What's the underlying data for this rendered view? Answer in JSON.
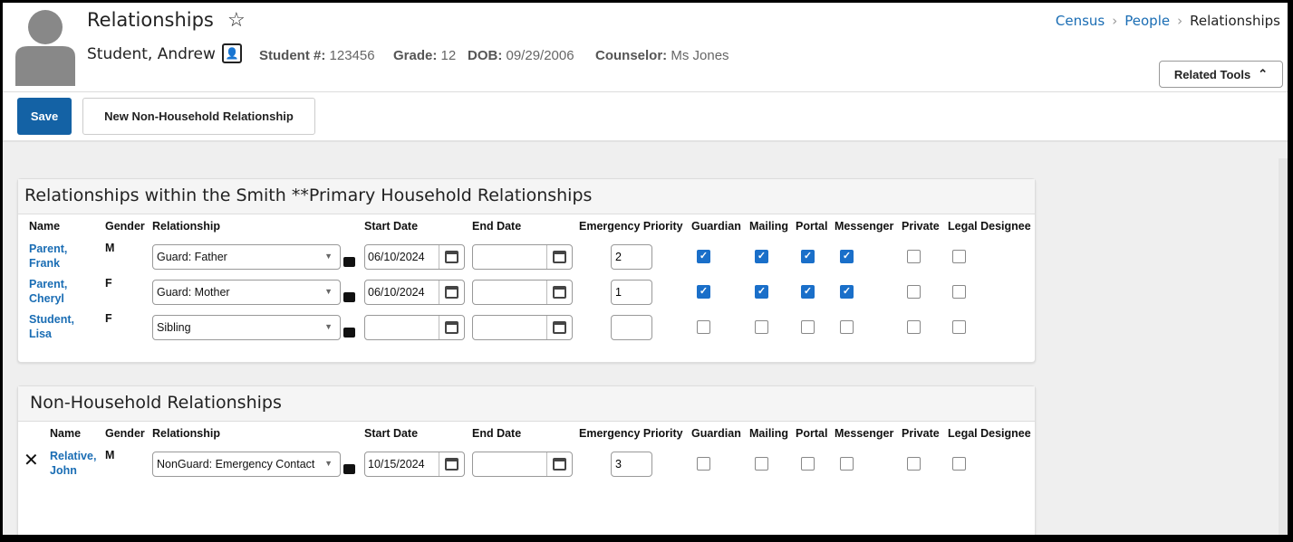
{
  "header": {
    "title": "Relationships",
    "student_name": "Student, Andrew",
    "student_num_label": "Student #:",
    "student_num": "123456",
    "grade_label": "Grade:",
    "grade": "12",
    "dob_label": "DOB:",
    "dob": "09/29/2006",
    "counselor_label": "Counselor:",
    "counselor": "Ms Jones",
    "breadcrumbs": [
      "Census",
      "People",
      "Relationships"
    ],
    "related_tools": "Related Tools"
  },
  "toolbar": {
    "save": "Save",
    "new_non_household": "New Non-Household Relationship"
  },
  "colors": {
    "primary": "#1462a5",
    "link": "#1a6db4",
    "checkbox": "#1a6fc9"
  },
  "columns": [
    "Name",
    "Gender",
    "Relationship",
    "Start Date",
    "End Date",
    "Emergency Priority",
    "Guardian",
    "Mailing",
    "Portal",
    "Messenger",
    "Private",
    "Legal Designee"
  ],
  "household": {
    "title": "Relationships within the Smith **Primary Household Relationships",
    "rows": [
      {
        "name1": "Parent,",
        "name2": "Frank",
        "gender": "M",
        "relationship": "Guard: Father",
        "start": "06/10/2024",
        "end": "",
        "priority": "2",
        "checks": [
          true,
          true,
          true,
          true,
          false,
          false
        ]
      },
      {
        "name1": "Parent,",
        "name2": "Cheryl",
        "gender": "F",
        "relationship": "Guard: Mother",
        "start": "06/10/2024",
        "end": "",
        "priority": "1",
        "checks": [
          true,
          true,
          true,
          true,
          false,
          false
        ]
      },
      {
        "name1": "Student,",
        "name2": "Lisa",
        "gender": "F",
        "relationship": "Sibling",
        "start": "",
        "end": "",
        "priority": "",
        "checks": [
          false,
          false,
          false,
          false,
          false,
          false
        ]
      }
    ]
  },
  "non_household": {
    "title": "Non-Household Relationships",
    "rows": [
      {
        "name1": "Relative,",
        "name2": "John",
        "gender": "M",
        "relationship": "NonGuard: Emergency Contact",
        "start": "10/15/2024",
        "end": "",
        "priority": "3",
        "checks": [
          false,
          false,
          false,
          false,
          false,
          false
        ]
      }
    ]
  }
}
